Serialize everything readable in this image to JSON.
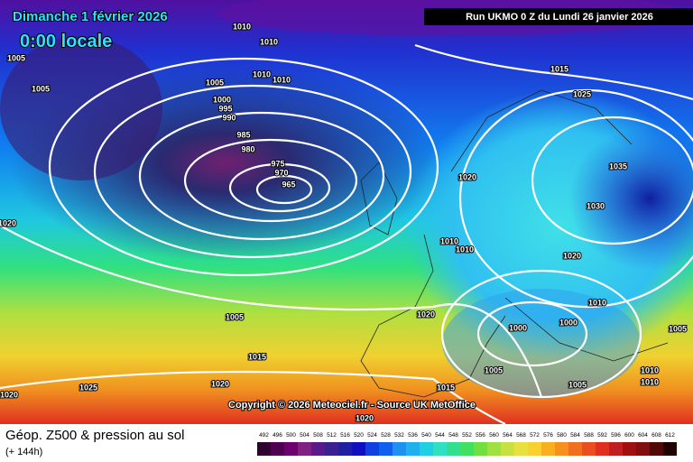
{
  "header": {
    "date": "Dimanche 1 février 2026",
    "time": "0:00 locale",
    "run": "Run UKMO 0 Z du Lundi 26 janvier 2026"
  },
  "copyright": "Copyright © 2026 Meteociel.fr - Source UK MetOffice",
  "footer": {
    "title": "Géop. Z500 & pression au sol",
    "lead": "(+ 144h)"
  },
  "colorbar": [
    492,
    496,
    500,
    504,
    508,
    512,
    516,
    520,
    524,
    528,
    532,
    536,
    540,
    544,
    548,
    552,
    556,
    560,
    564,
    568,
    572,
    576,
    580,
    584,
    588,
    592,
    596,
    600,
    604,
    608,
    612
  ],
  "isobar_labels": [
    "1005",
    "1005",
    "1010",
    "1010",
    "1010",
    "1010",
    "1005",
    "1000",
    "995",
    "990",
    "985",
    "980",
    "975",
    "970",
    "965",
    "1015",
    "1025",
    "1035",
    "1030",
    "1020",
    "1010",
    "1010",
    "1020",
    "1010",
    "1000",
    "1000",
    "1005",
    "1020",
    "1015",
    "1005",
    "1005",
    "1005",
    "1010",
    "1010",
    "1020",
    "1020",
    "1025",
    "1020",
    "1015",
    "1020"
  ]
}
